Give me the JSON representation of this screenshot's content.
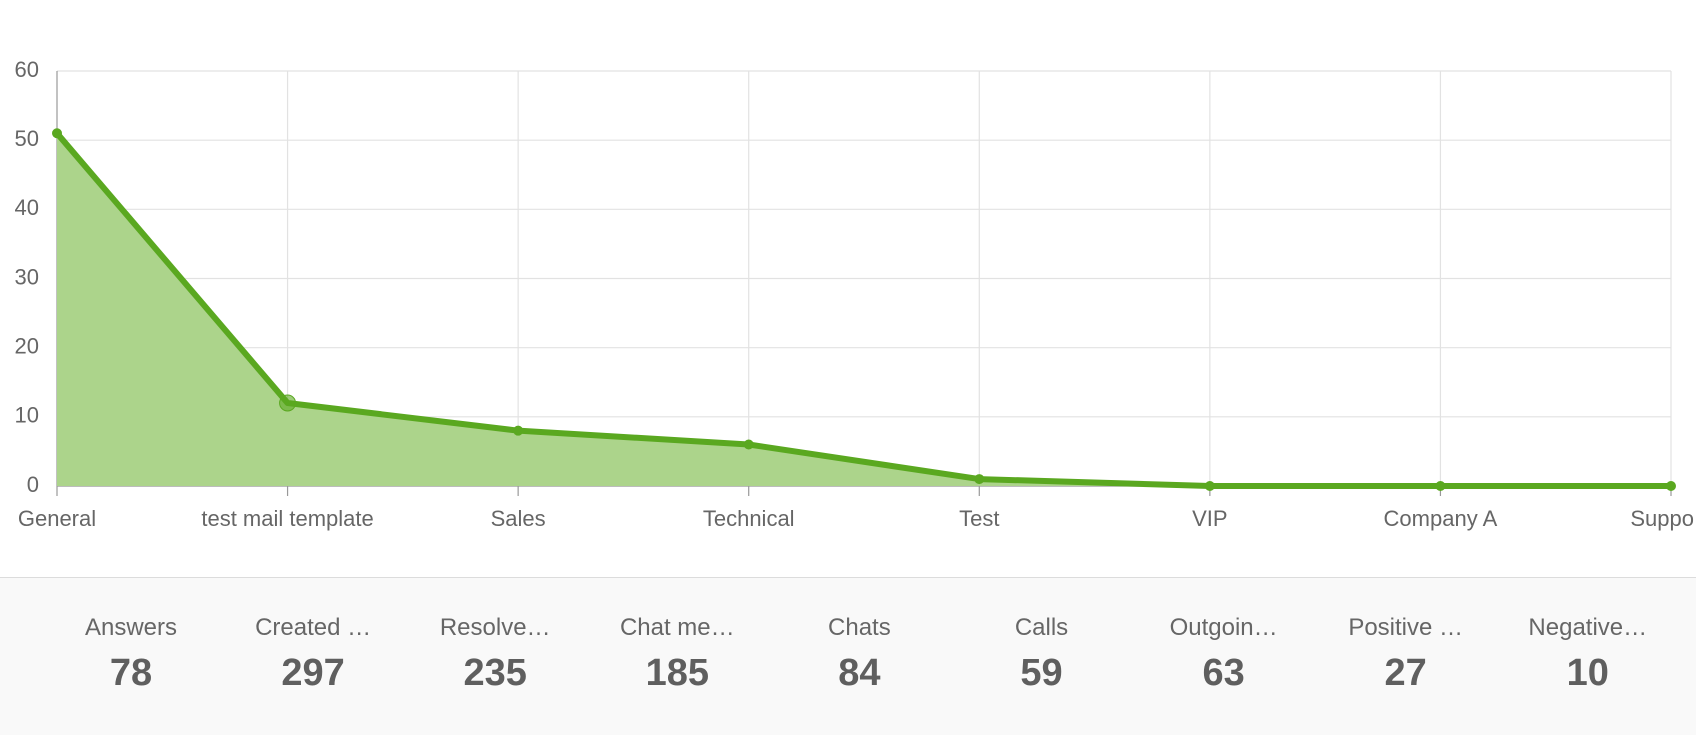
{
  "chart_data": {
    "type": "area",
    "categories": [
      "General",
      "test mail template",
      "Sales",
      "Technical",
      "Test",
      "VIP",
      "Company A",
      "Suppo"
    ],
    "values": [
      51,
      12,
      8,
      6,
      1,
      0,
      0,
      0
    ],
    "color": "#5aa820",
    "fill": "#acd48b",
    "ylim": [
      0,
      60
    ],
    "yticks": [
      0,
      10,
      20,
      30,
      40,
      50,
      60
    ],
    "grid": true
  },
  "stats": [
    {
      "label": "Answers",
      "value": "78"
    },
    {
      "label": "Created …",
      "value": "297"
    },
    {
      "label": "Resolve…",
      "value": "235"
    },
    {
      "label": "Chat me…",
      "value": "185"
    },
    {
      "label": "Chats",
      "value": "84"
    },
    {
      "label": "Calls",
      "value": "59"
    },
    {
      "label": "Outgoin…",
      "value": "63"
    },
    {
      "label": "Positive …",
      "value": "27"
    },
    {
      "label": "Negative…",
      "value": "10"
    }
  ]
}
